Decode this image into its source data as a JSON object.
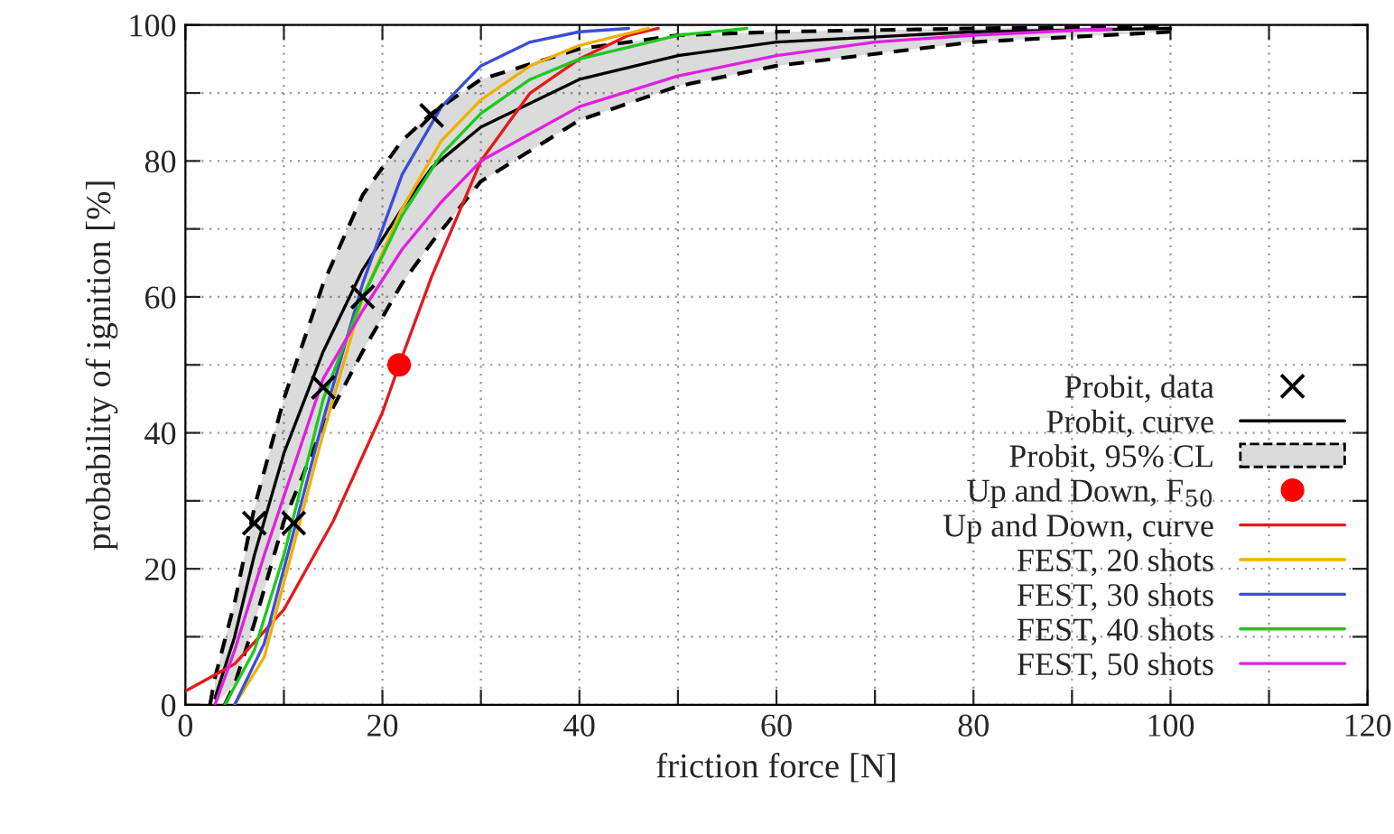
{
  "chart_data": {
    "type": "line",
    "xlabel": "friction force [N]",
    "ylabel": "probability of ignition [%]",
    "xlim": [
      0,
      120
    ],
    "ylim": [
      0,
      100
    ],
    "xticks": [
      0,
      {
        "value": 10,
        "label": null
      },
      20,
      {
        "value": 30,
        "label": null
      },
      40,
      {
        "value": 50,
        "label": null
      },
      60,
      {
        "value": 70,
        "label": null
      },
      80,
      {
        "value": 90,
        "label": null
      },
      100,
      {
        "value": 110,
        "label": null
      },
      120
    ],
    "yticks": [
      0,
      {
        "value": 10,
        "label": null
      },
      20,
      {
        "value": 30,
        "label": null
      },
      40,
      {
        "value": 50,
        "label": null
      },
      60,
      {
        "value": 70,
        "label": null
      },
      80,
      {
        "value": 90,
        "label": null
      },
      100
    ],
    "grid": true,
    "legend": "bottom right",
    "series": [
      {
        "name": "Probit, data",
        "type": "scatter",
        "marker": "cross",
        "color": "#000000",
        "x": [
          7,
          11,
          14,
          18,
          25
        ],
        "values": [
          26.7,
          26.7,
          46.7,
          60,
          86.7
        ]
      },
      {
        "name": "Probit, curve",
        "color": "#000000",
        "line_style": "solid",
        "x": [
          3,
          5,
          7,
          10,
          14,
          18,
          22,
          25,
          30,
          40,
          50,
          60,
          80,
          100
        ],
        "values": [
          1,
          10,
          22,
          37,
          52,
          64,
          73,
          79,
          85,
          92,
          95.5,
          97.5,
          99,
          99.5
        ],
        "lower": [
          0,
          3,
          12,
          27,
          41,
          52,
          62,
          68,
          77,
          86,
          91,
          94,
          97.5,
          99
        ],
        "upper": [
          4,
          15,
          29,
          45,
          62,
          75,
          83,
          87,
          92,
          96.5,
          98.5,
          99,
          99.5,
          99.8
        ]
      },
      {
        "name": "Probit, 95% CL",
        "color": "#000000",
        "line_style": "dashed",
        "x": [
          2.5,
          3,
          5,
          7,
          10,
          14,
          18,
          22,
          25,
          30,
          40,
          50,
          60,
          80,
          100
        ],
        "values": [
          0,
          4,
          15,
          29,
          45,
          62,
          75,
          83,
          87,
          92,
          96.5,
          98.5,
          99,
          99.5,
          99.8
        ]
      },
      {
        "color": "#000000",
        "line_style": "dashed",
        "x": [
          4,
          5,
          7,
          10,
          14,
          18,
          22,
          25,
          30,
          40,
          50,
          60,
          80,
          100
        ],
        "values": [
          0,
          3,
          12,
          27,
          41,
          52,
          62,
          68,
          77,
          86,
          91,
          94,
          97.5,
          99
        ]
      },
      {
        "name": "Up and Down, F$_{50}$",
        "type": "scatter",
        "marker": "circle",
        "color": "#ff0000",
        "x": [
          21.7
        ],
        "values": [
          50
        ]
      },
      {
        "name": "Up and Down, curve",
        "color": "#e41a1c",
        "x": [
          0,
          5,
          10,
          15,
          20,
          21.7,
          25,
          30,
          35,
          40,
          45,
          48
        ],
        "values": [
          2,
          6,
          14,
          27,
          43,
          50,
          63,
          80,
          90,
          95,
          98.5,
          99.5
        ]
      },
      {
        "name": "FEST, 20 shots",
        "color": "#f0b000",
        "x": [
          5,
          8,
          10,
          14,
          18,
          22,
          26,
          30,
          35,
          40,
          47
        ],
        "values": [
          0,
          7,
          18,
          40,
          60,
          73,
          83,
          89,
          94,
          97,
          99.5
        ]
      },
      {
        "name": "FEST, 30 shots",
        "color": "#3a4ed8",
        "x": [
          5,
          8,
          10,
          14,
          18,
          22,
          26,
          30,
          35,
          40,
          45
        ],
        "values": [
          0,
          9,
          20,
          42,
          62,
          78,
          88,
          94,
          97.5,
          99,
          99.5
        ]
      },
      {
        "name": "FEST, 40 shots",
        "color": "#1ec81e",
        "x": [
          4,
          7,
          10,
          14,
          18,
          22,
          26,
          30,
          35,
          40,
          50,
          57
        ],
        "values": [
          0,
          8,
          22,
          45,
          60,
          72,
          81,
          87,
          92,
          95,
          98.5,
          99.5
        ]
      },
      {
        "name": "FEST, 50 shots",
        "color": "#e020e0",
        "x": [
          3,
          5,
          8,
          11,
          14,
          18,
          22,
          26,
          30,
          40,
          50,
          60,
          70,
          80,
          90,
          94
        ],
        "values": [
          0,
          8,
          22,
          35,
          48,
          58,
          67,
          74,
          80,
          88,
          92.5,
          95.5,
          97.5,
          98.5,
          99.2,
          99.4
        ]
      }
    ]
  }
}
